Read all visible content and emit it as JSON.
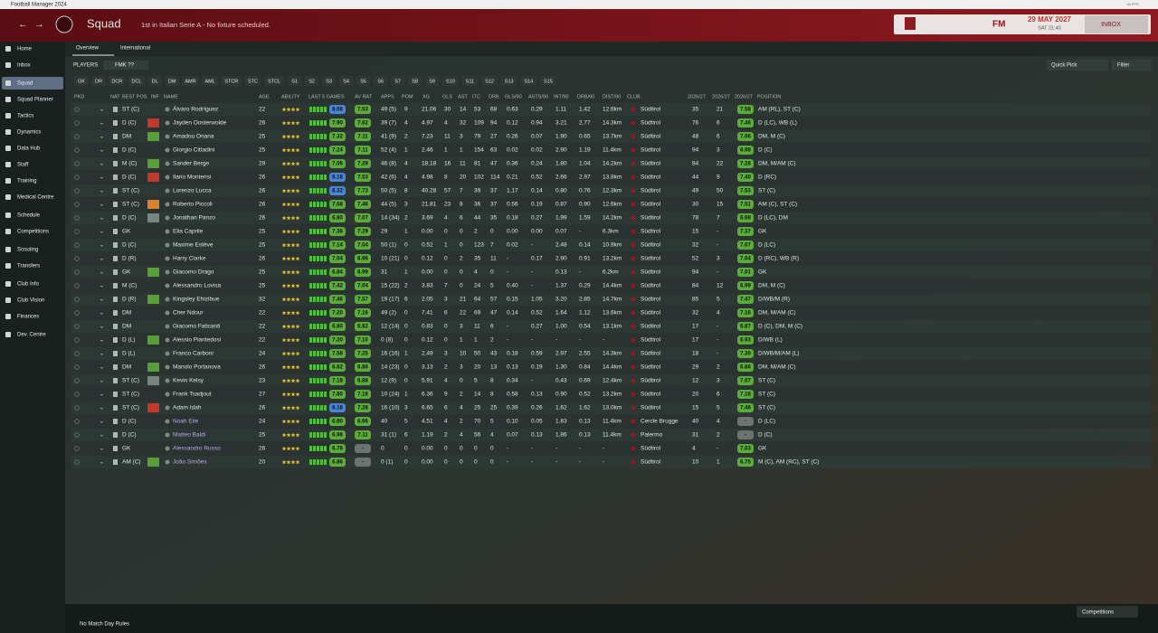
{
  "app_title": "Football Manager 2024",
  "fps": "36 FPS",
  "header": {
    "title": "Squad",
    "subtitle": "1st in Italian Serie A - No fixture scheduled.",
    "date": "29 MAY 2027",
    "time": "SAT 21:40",
    "inbox": "INBOX",
    "logo": "FM"
  },
  "sidebar": [
    "Home",
    "Inbox",
    "Squad",
    "Squad Planner",
    "Tactics",
    "Dynamics",
    "Data Hub",
    "Staff",
    "Training",
    "Medical Centre",
    "Schedule",
    "Competitions",
    "Scouting",
    "Transfers",
    "Club Info",
    "Club Vision",
    "Finances",
    "Dev. Centre"
  ],
  "tabs": [
    "Overview",
    "International"
  ],
  "toolbar": {
    "players": "PLAYERS",
    "view": "FMK ??",
    "quick_pick": "Quick Pick",
    "filter": "Filter"
  },
  "position_filters": [
    "GK",
    "DR",
    "DCR",
    "DCL",
    "DL",
    "DM",
    "AMR",
    "AML",
    "STCR",
    "STC",
    "STCL",
    "S1",
    "S2",
    "S3",
    "S4",
    "S5",
    "S6",
    "S7",
    "S8",
    "S9",
    "S10",
    "S11",
    "S12",
    "S13",
    "S14",
    "S15"
  ],
  "table": {
    "columns": [
      "PKD",
      "NAT",
      "BEST POS",
      "INF",
      "NAME",
      "AGE",
      "ABILITY",
      "LAST 5 GAMES",
      "AV RAT",
      "APPS",
      "POM",
      "XG",
      "GLS",
      "AST",
      "ITC",
      "DRB",
      "GLS/90",
      "ASTS/90",
      "INT/90",
      "DRB/90",
      "DIST/90",
      "CLUB",
      "2026/27",
      "2026/27",
      "2026/27",
      "POSITION"
    ],
    "inf_colors": [
      null,
      "#c0392b",
      "#5a9e3a",
      null,
      "#5a9e3a",
      "#c0392b",
      null,
      "#d9822b",
      "#7a8580",
      null,
      null,
      null,
      "#5a9e3a",
      null,
      "#5a9e3a",
      null,
      null,
      "#5a9e3a",
      null,
      "#5a9e3a",
      "#7a8580",
      null,
      "#c0392b",
      null,
      null,
      null,
      "#5a9e3a"
    ],
    "rows": [
      [
        "ST (C)",
        "Álvaro Rodríguez",
        "22",
        "8.08",
        "7.53",
        "49 (5)",
        "9",
        "21.06",
        "30",
        "14",
        "53",
        "68",
        "0.63",
        "0.29",
        "1.11",
        "1.42",
        "12.6km",
        "Südtirol",
        "35",
        "21",
        "7.58",
        "AM (RL), ST (C)"
      ],
      [
        "D (C)",
        "Jayden Oosterwolde",
        "26",
        "7.90",
        "7.62",
        "39 (7)",
        "4",
        "4.97",
        "4",
        "32",
        "109",
        "94",
        "0.12",
        "0.94",
        "3.21",
        "2.77",
        "14.3km",
        "Südtirol",
        "76",
        "6",
        "7.46",
        "D (LC), WB (L)"
      ],
      [
        "DM",
        "Amadou Onana",
        "25",
        "7.32",
        "7.11",
        "41 (9)",
        "2",
        "7.23",
        "11",
        "3",
        "79",
        "27",
        "0.26",
        "0.07",
        "1.90",
        "0.65",
        "13.7km",
        "Südtirol",
        "48",
        "6",
        "7.06",
        "DM, M (C)"
      ],
      [
        "D (C)",
        "Giorgio Cittadini",
        "25",
        "7.24",
        "7.11",
        "52 (4)",
        "1",
        "2.46",
        "1",
        "1",
        "154",
        "63",
        "0.02",
        "0.02",
        "2.90",
        "1.19",
        "11.4km",
        "Südtirol",
        "94",
        "3",
        "6.98",
        "D (C)"
      ],
      [
        "M (C)",
        "Sander Berge",
        "29",
        "7.06",
        "7.29",
        "46 (8)",
        "4",
        "18.18",
        "16",
        "11",
        "81",
        "47",
        "0.36",
        "0.24",
        "1.80",
        "1.04",
        "14.2km",
        "Südtirol",
        "84",
        "22",
        "7.28",
        "DM, M/AM (C)"
      ],
      [
        "D (C)",
        "Ilario Monterisi",
        "26",
        "8.18",
        "7.53",
        "42 (6)",
        "4",
        "4.98",
        "8",
        "20",
        "102",
        "114",
        "0.21",
        "0.52",
        "2.66",
        "2.97",
        "13.8km",
        "Südtirol",
        "44",
        "9",
        "7.40",
        "D (RC)"
      ],
      [
        "ST (C)",
        "Lorenzo Lucca",
        "26",
        "8.32",
        "7.73",
        "50 (5)",
        "8",
        "40.28",
        "57",
        "7",
        "39",
        "37",
        "1.17",
        "0.14",
        "0.80",
        "0.76",
        "12.3km",
        "Südtirol",
        "49",
        "50",
        "7.53",
        "ST (C)"
      ],
      [
        "ST (C)",
        "Roberto Piccoli",
        "26",
        "7.68",
        "7.46",
        "44 (5)",
        "3",
        "21.81",
        "23",
        "8",
        "36",
        "37",
        "0.56",
        "0.19",
        "0.87",
        "0.90",
        "12.6km",
        "Südtirol",
        "30",
        "15",
        "7.51",
        "AM (C), ST (C)"
      ],
      [
        "D (C)",
        "Jonathan Panzo",
        "26",
        "6.80",
        "7.07",
        "14 (34)",
        "2",
        "3.69",
        "4",
        "6",
        "44",
        "35",
        "0.18",
        "0.27",
        "1.99",
        "1.59",
        "14.2km",
        "Südtirol",
        "78",
        "7",
        "6.98",
        "D (LC), DM"
      ],
      [
        "GK",
        "Elia Caprile",
        "25",
        "7.36",
        "7.29",
        "29",
        "1",
        "0.00",
        "0",
        "0",
        "2",
        "0",
        "0.00",
        "0.00",
        "0.07",
        "-",
        "6.3km",
        "Südtirol",
        "15",
        "-",
        "7.37",
        "GK"
      ],
      [
        "D (C)",
        "Maxime Estève",
        "25",
        "7.14",
        "7.04",
        "50 (1)",
        "0",
        "0.52",
        "1",
        "0",
        "123",
        "7",
        "0.02",
        "-",
        "2.48",
        "0.14",
        "10.9km",
        "Südtirol",
        "32",
        "-",
        "7.07",
        "D (LC)"
      ],
      [
        "D (R)",
        "Harry Clarke",
        "26",
        "7.04",
        "6.96",
        "10 (21)",
        "0",
        "0.12",
        "0",
        "2",
        "35",
        "11",
        "-",
        "0.17",
        "2.90",
        "0.91",
        "13.2km",
        "Südtirol",
        "52",
        "3",
        "7.04",
        "D (RC), WB (R)"
      ],
      [
        "GK",
        "Giacomo Drago",
        "25",
        "6.84",
        "6.99",
        "31",
        "1",
        "0.00",
        "0",
        "0",
        "4",
        "0",
        "-",
        "-",
        "0.13",
        "-",
        "6.2km",
        "Südtirol",
        "94",
        "-",
        "7.01",
        "GK"
      ],
      [
        "M (C)",
        "Alessandro Lovisa",
        "25",
        "7.42",
        "7.04",
        "15 (22)",
        "2",
        "3.83",
        "7",
        "0",
        "24",
        "5",
        "0.40",
        "-",
        "1.37",
        "0.29",
        "14.4km",
        "Südtirol",
        "84",
        "12",
        "6.99",
        "DM, M (C)"
      ],
      [
        "D (R)",
        "Kingsley Ehizibue",
        "32",
        "7.46",
        "7.57",
        "19 (17)",
        "6",
        "2.05",
        "3",
        "21",
        "64",
        "57",
        "0.15",
        "1.05",
        "3.20",
        "2.85",
        "14.7km",
        "Südtirol",
        "85",
        "5",
        "7.47",
        "D/WB/M (R)"
      ],
      [
        "DM",
        "Cher Ndour",
        "22",
        "7.20",
        "7.16",
        "49 (2)",
        "0",
        "7.41",
        "6",
        "22",
        "69",
        "47",
        "0.14",
        "0.52",
        "1.64",
        "1.12",
        "13.6km",
        "Südtirol",
        "32",
        "4",
        "7.16",
        "DM, M/AM (C)"
      ],
      [
        "DM",
        "Giacomo Faticanti",
        "22",
        "6.80",
        "6.82",
        "12 (14)",
        "0",
        "0.83",
        "0",
        "3",
        "11",
        "6",
        "-",
        "0.27",
        "1.00",
        "0.54",
        "13.1km",
        "Südtirol",
        "17",
        "-",
        "6.87",
        "D (C), DM, M (C)"
      ],
      [
        "D (L)",
        "Alessio Piantedosi",
        "22",
        "7.20",
        "7.10",
        "0 (8)",
        "0",
        "0.12",
        "0",
        "1",
        "1",
        "2",
        "-",
        "-",
        "-",
        "-",
        "-",
        "Südtirol",
        "17",
        "-",
        "6.93",
        "D/WB (L)"
      ],
      [
        "D (L)",
        "Franco Carboni",
        "24",
        "7.58",
        "7.25",
        "16 (16)",
        "1",
        "2.49",
        "3",
        "10",
        "50",
        "43",
        "0.18",
        "0.59",
        "2.97",
        "2.55",
        "14.3km",
        "Südtirol",
        "18",
        "-",
        "7.30",
        "D/WB/M/AM (L)"
      ],
      [
        "DM",
        "Manolo Portanova",
        "26",
        "6.62",
        "6.86",
        "14 (23)",
        "0",
        "3.13",
        "2",
        "3",
        "20",
        "13",
        "0.13",
        "0.19",
        "1.30",
        "0.84",
        "14.4km",
        "Südtirol",
        "29",
        "2",
        "6.86",
        "DM, M/AM (C)"
      ],
      [
        "ST (C)",
        "Kevin Kelsy",
        "23",
        "7.18",
        "6.88",
        "12 (9)",
        "0",
        "5.91",
        "4",
        "0",
        "5",
        "8",
        "0.34",
        "-",
        "0.43",
        "0.69",
        "12.4km",
        "Südtirol",
        "12",
        "3",
        "7.07",
        "ST (C)"
      ],
      [
        "ST (C)",
        "Frank Tsadjout",
        "27",
        "7.80",
        "7.18",
        "10 (24)",
        "1",
        "6.36",
        "9",
        "2",
        "14",
        "8",
        "0.58",
        "0.13",
        "0.90",
        "0.52",
        "13.2km",
        "Südtirol",
        "20",
        "6",
        "7.18",
        "ST (C)"
      ],
      [
        "ST (C)",
        "Adam Idah",
        "26",
        "8.18",
        "7.28",
        "16 (10)",
        "3",
        "6.65",
        "6",
        "4",
        "25",
        "25",
        "0.39",
        "0.26",
        "1.62",
        "1.62",
        "13.0km",
        "Südtirol",
        "15",
        "5",
        "7.46",
        "ST (C)"
      ],
      [
        "D (C)",
        "Noah Eile",
        "24",
        "6.80",
        "6.96",
        "40",
        "5",
        "4.51",
        "4",
        "2",
        "70",
        "5",
        "0.10",
        "0.05",
        "1.83",
        "0.13",
        "11.4km",
        "Cercle Brugge",
        "40",
        "4",
        "-",
        "D (LC)"
      ],
      [
        "D (C)",
        "Matteo Baldi",
        "25",
        "6.98",
        "7.11",
        "31 (1)",
        "6",
        "1.19",
        "2",
        "4",
        "56",
        "4",
        "0.07",
        "0.13",
        "1.86",
        "0.13",
        "11.4km",
        "Palermo",
        "31",
        "2",
        "-",
        "D (C)"
      ],
      [
        "GK",
        "Alessandro Russo",
        "26",
        "6.76",
        "-",
        "0",
        "0",
        "0.00",
        "0",
        "0",
        "0",
        "0",
        "-",
        "-",
        "-",
        "-",
        "-",
        "Südtirol",
        "4",
        "-",
        "7.03",
        "GK"
      ],
      [
        "AM (C)",
        "João Simões",
        "20",
        "6.86",
        "-",
        "0 (1)",
        "0",
        "0.00",
        "0",
        "0",
        "0",
        "0",
        "-",
        "-",
        "-",
        "-",
        "-",
        "Südtirol",
        "10",
        "1",
        "6.75",
        "M (C), AM (RC), ST (C)"
      ]
    ]
  },
  "footer": {
    "rules": "No Match Day Rules",
    "competitions": "Competitions"
  }
}
